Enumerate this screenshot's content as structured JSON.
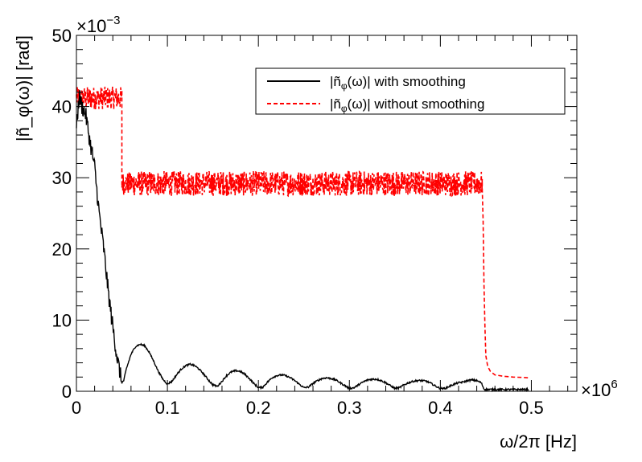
{
  "chart_data": {
    "type": "line",
    "title": "",
    "xlabel": "ω/2π [Hz]",
    "ylabel": "|ñ_φ(ω)| [rad]",
    "x_multiplier_label": "×10",
    "x_multiplier_exp": "6",
    "y_multiplier_label": "×10",
    "y_multiplier_exp": "−3",
    "xlim": [
      0,
      0.55
    ],
    "ylim": [
      0,
      50
    ],
    "x_ticks": [
      0,
      0.1,
      0.2,
      0.3,
      0.4,
      0.5
    ],
    "x_tick_labels": [
      "0",
      "0.1",
      "0.2",
      "0.3",
      "0.4",
      "0.5"
    ],
    "y_ticks": [
      0,
      10,
      20,
      30,
      40,
      50
    ],
    "y_tick_labels": [
      "0",
      "10",
      "20",
      "30",
      "40",
      "50"
    ],
    "legend_position": "top-right",
    "series": [
      {
        "name": "with smoothing",
        "legend_prefix": "|ñ",
        "legend_sub": "φ",
        "legend_suffix": "(ω)| with smoothing",
        "color": "#000000",
        "dashed": false,
        "x": [
          0,
          0.003,
          0.006,
          0.01,
          0.015,
          0.02,
          0.025,
          0.03,
          0.035,
          0.04,
          0.045,
          0.05,
          0.052,
          0.055,
          0.06,
          0.065,
          0.07,
          0.075,
          0.08,
          0.085,
          0.09,
          0.095,
          0.1,
          0.105,
          0.11,
          0.115,
          0.12,
          0.125,
          0.13,
          0.135,
          0.14,
          0.145,
          0.15,
          0.155,
          0.16,
          0.165,
          0.17,
          0.175,
          0.18,
          0.185,
          0.19,
          0.195,
          0.2,
          0.205,
          0.21,
          0.215,
          0.22,
          0.225,
          0.23,
          0.235,
          0.24,
          0.245,
          0.25,
          0.255,
          0.26,
          0.265,
          0.27,
          0.275,
          0.28,
          0.285,
          0.29,
          0.295,
          0.3,
          0.305,
          0.31,
          0.315,
          0.32,
          0.325,
          0.33,
          0.335,
          0.34,
          0.345,
          0.35,
          0.355,
          0.36,
          0.365,
          0.37,
          0.375,
          0.38,
          0.385,
          0.39,
          0.395,
          0.4,
          0.405,
          0.41,
          0.415,
          0.42,
          0.425,
          0.43,
          0.435,
          0.44,
          0.445,
          0.448,
          0.45,
          0.46,
          0.48,
          0.497
        ],
        "y": [
          37,
          41.5,
          40,
          39,
          35,
          31.5,
          25,
          20,
          14,
          9,
          4.5,
          1.2,
          1.5,
          3.2,
          5.2,
          6.3,
          6.6,
          6.4,
          5.5,
          4.2,
          2.8,
          1.7,
          1.0,
          1.4,
          2.3,
          3.1,
          3.6,
          3.8,
          3.6,
          3.1,
          2.4,
          1.6,
          0.9,
          0.7,
          1.4,
          2.2,
          2.7,
          2.9,
          2.8,
          2.4,
          1.8,
          1.1,
          0.5,
          0.6,
          1.3,
          1.9,
          2.2,
          2.3,
          2.2,
          1.9,
          1.5,
          1.0,
          0.5,
          0.6,
          1.1,
          1.5,
          1.8,
          1.9,
          1.8,
          1.6,
          1.2,
          0.8,
          0.4,
          0.5,
          0.9,
          1.3,
          1.6,
          1.7,
          1.7,
          1.5,
          1.2,
          0.8,
          0.4,
          0.5,
          0.9,
          1.2,
          1.4,
          1.5,
          1.5,
          1.4,
          1.1,
          0.7,
          0.4,
          0.4,
          0.7,
          1.0,
          1.2,
          1.3,
          1.5,
          1.6,
          1.5,
          1.2,
          0.3,
          0.25,
          0.25,
          0.25,
          0.25
        ]
      },
      {
        "name": "without smoothing",
        "legend_prefix": "|ñ",
        "legend_sub": "φ",
        "legend_suffix": "(ω)| without smoothing",
        "color": "#ff0000",
        "dashed": true,
        "segments": [
          {
            "x_start": 0.0,
            "x_end": 0.05,
            "mean": 41.2,
            "noise": 1.0
          },
          {
            "x_start": 0.05,
            "x_end": 0.06,
            "mean": 29.2,
            "noise": 1.0
          },
          {
            "x_start": 0.06,
            "x_end": 0.446,
            "mean": 29.2,
            "noise": 1.1
          }
        ],
        "tail_x": [
          0.446,
          0.447,
          0.448,
          0.449,
          0.45,
          0.452,
          0.455,
          0.46,
          0.47,
          0.48,
          0.49,
          0.497
        ],
        "tail_y": [
          28.5,
          24,
          15,
          9,
          5,
          3.5,
          2.8,
          2.3,
          2.1,
          2.0,
          1.95,
          1.9
        ]
      }
    ]
  }
}
